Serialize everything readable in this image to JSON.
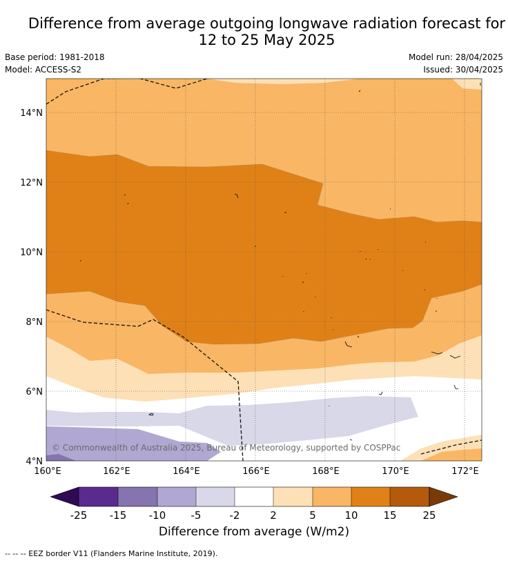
{
  "title": {
    "line1": "Difference from average outgoing longwave radiation forecast for",
    "line2": "12 to 25 May 2025"
  },
  "meta": {
    "base_period": "Base period: 1981-2018",
    "model": "Model: ACCESS-S2",
    "model_run": "Model run: 28/04/2025",
    "issued": "Issued: 30/04/2025"
  },
  "map": {
    "lat_ticks": [
      "4°N",
      "6°N",
      "8°N",
      "10°N",
      "12°N",
      "14°N"
    ],
    "lon_ticks": [
      "160°E",
      "162°E",
      "164°E",
      "166°E",
      "168°E",
      "170°E",
      "172°E"
    ],
    "copyright": "© Commonwealth of Australia 2025, Bureau of Meteorology, supported by COSPPac"
  },
  "colorbar": {
    "labels": [
      "-25",
      "-15",
      "-10",
      "-5",
      "-2",
      "2",
      "5",
      "10",
      "15",
      "25"
    ],
    "colors": [
      "#5b2a8e",
      "#8574ad",
      "#b0a8d2",
      "#d8d8e9",
      "#ffffff",
      "#fde0b6",
      "#f9b664",
      "#e08117",
      "#b35a0c"
    ],
    "under_color": "#2e0b55",
    "over_color": "#7a3a08",
    "title": "Difference from average (W/m2)"
  },
  "footer": {
    "legend": "-- -- -- EEZ border V11 (Flanders Marine Institute, 2019)."
  }
}
